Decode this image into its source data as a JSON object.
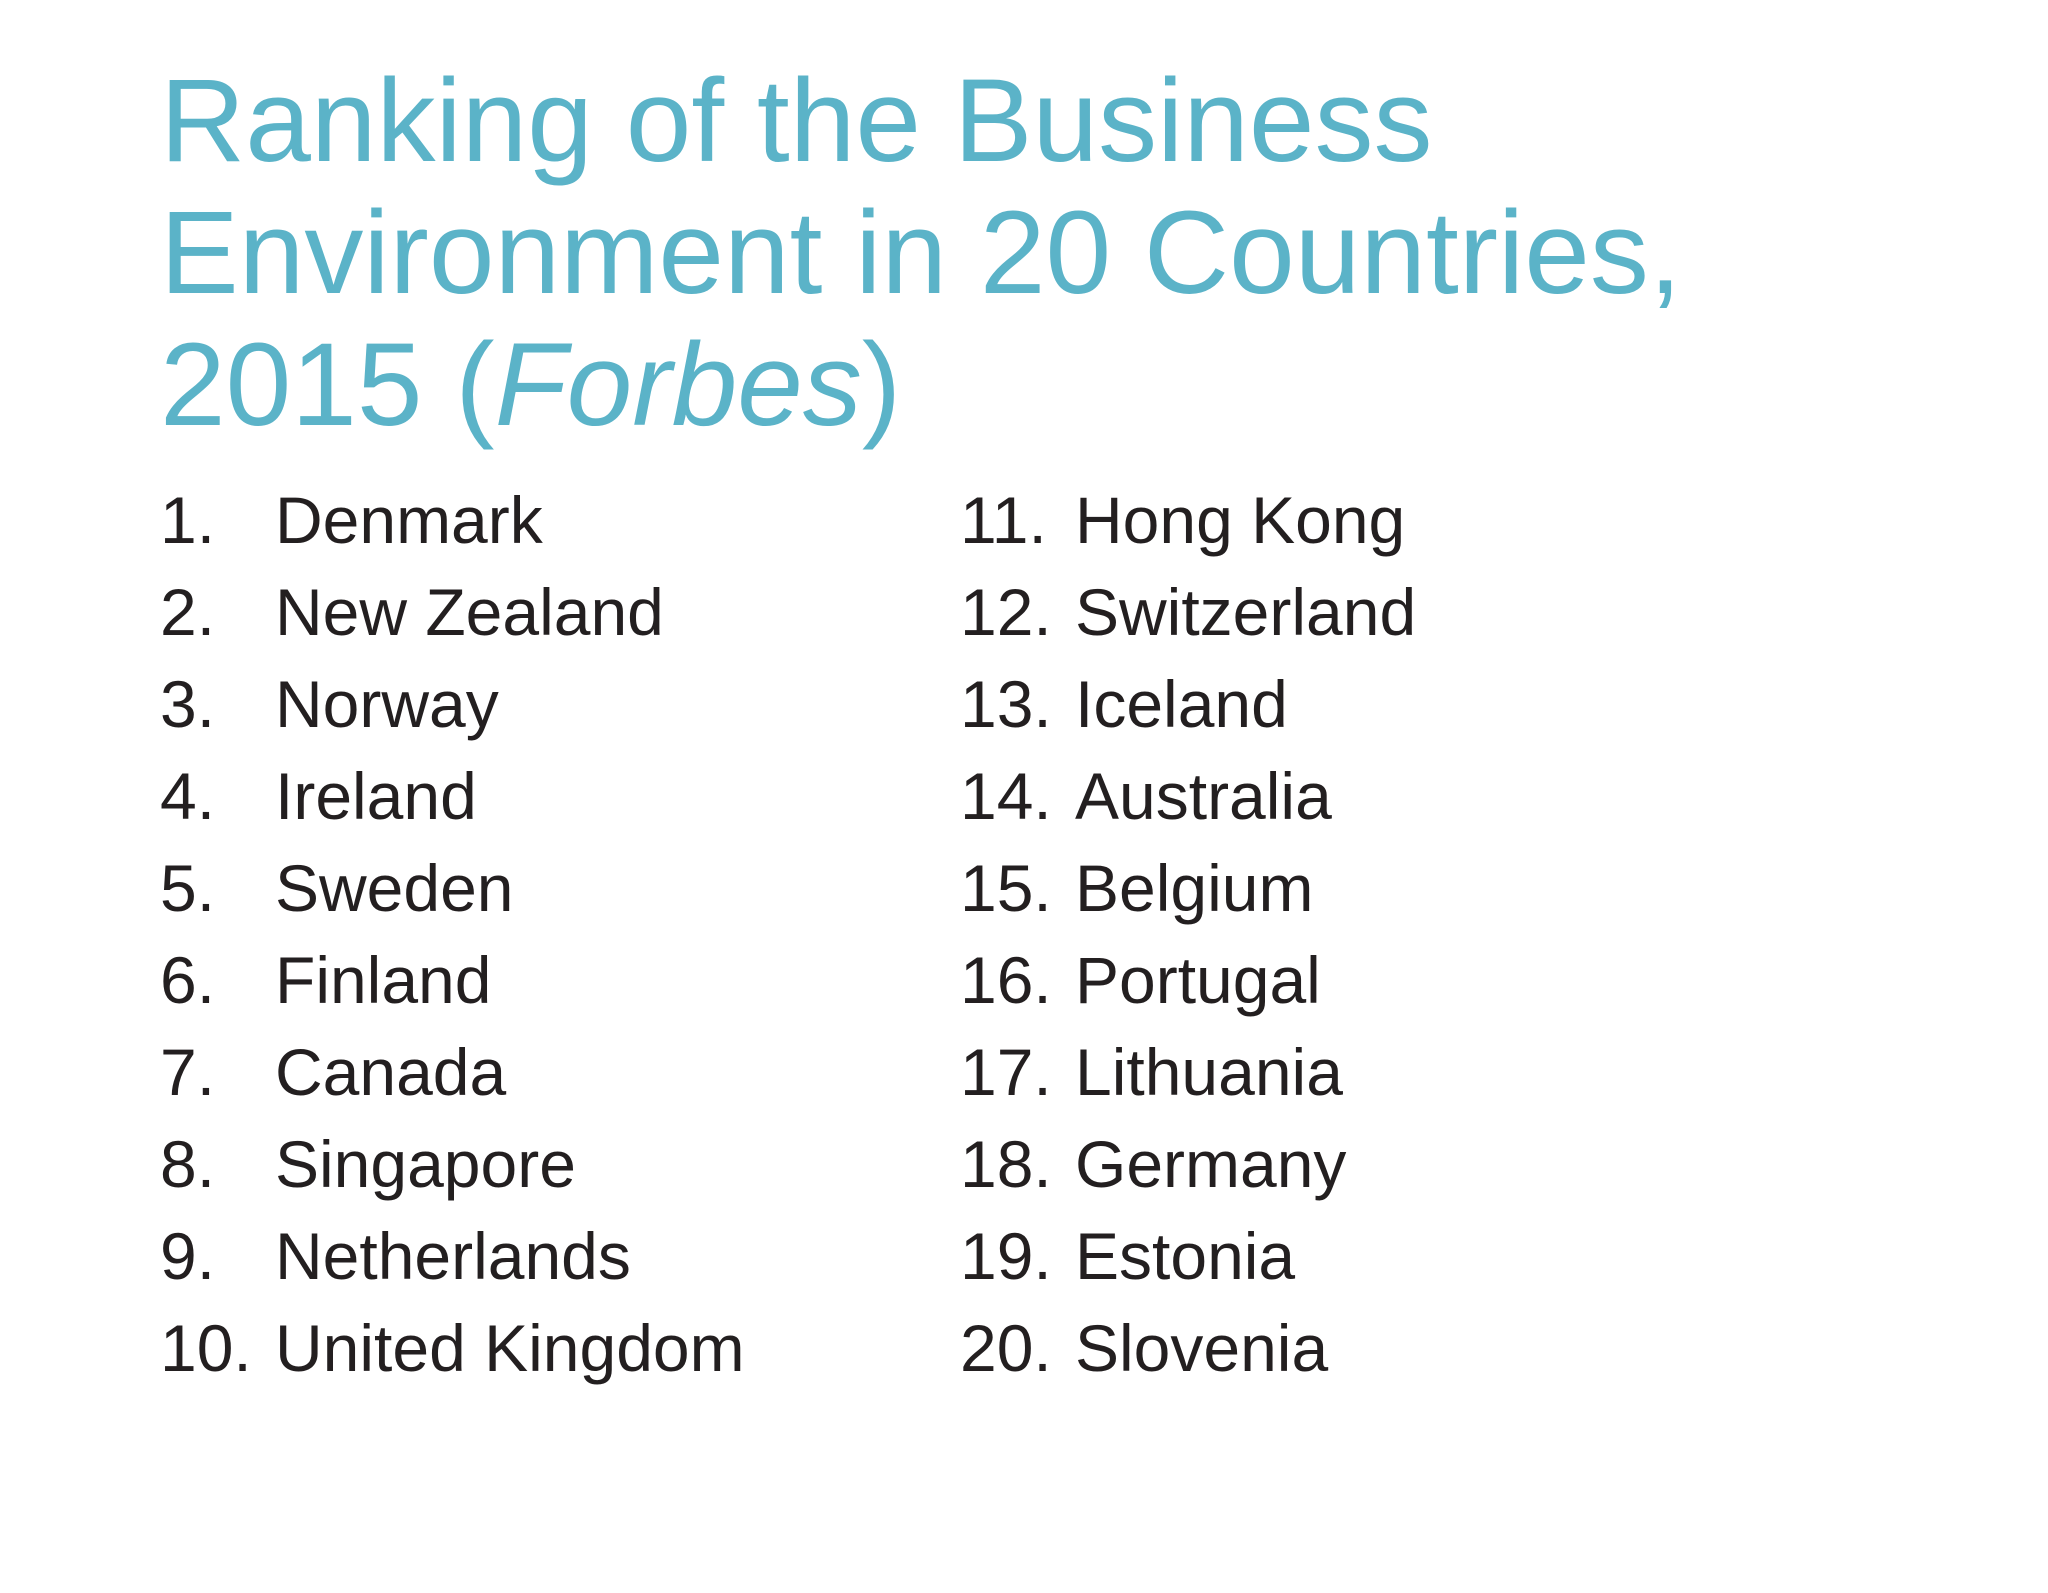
{
  "title": {
    "line1": "Ranking of the Business",
    "line2": "Environment in 20 Countries,",
    "line3_prefix": "2015 (",
    "line3_italic": "Forbes",
    "line3_suffix": ")"
  },
  "ranking": {
    "left": [
      {
        "rank": "1.",
        "country": "Denmark"
      },
      {
        "rank": "2.",
        "country": "New Zealand"
      },
      {
        "rank": "3.",
        "country": "Norway"
      },
      {
        "rank": "4.",
        "country": "Ireland"
      },
      {
        "rank": "5.",
        "country": "Sweden"
      },
      {
        "rank": "6.",
        "country": "Finland"
      },
      {
        "rank": "7.",
        "country": "Canada"
      },
      {
        "rank": "8.",
        "country": "Singapore"
      },
      {
        "rank": "9.",
        "country": "Netherlands"
      },
      {
        "rank": "10.",
        "country": "United Kingdom"
      }
    ],
    "right": [
      {
        "rank": "11.",
        "country": "Hong Kong"
      },
      {
        "rank": "12.",
        "country": "Switzerland"
      },
      {
        "rank": "13.",
        "country": "Iceland"
      },
      {
        "rank": "14.",
        "country": "Australia"
      },
      {
        "rank": "15.",
        "country": "Belgium"
      },
      {
        "rank": "16.",
        "country": "Portugal"
      },
      {
        "rank": "17.",
        "country": "Lithuania"
      },
      {
        "rank": "18.",
        "country": "Germany"
      },
      {
        "rank": "19.",
        "country": "Estonia"
      },
      {
        "rank": "20.",
        "country": "Slovenia"
      }
    ]
  },
  "colors": {
    "title": "#5bb3c8",
    "body_text": "#231f20",
    "background": "#ffffff"
  }
}
